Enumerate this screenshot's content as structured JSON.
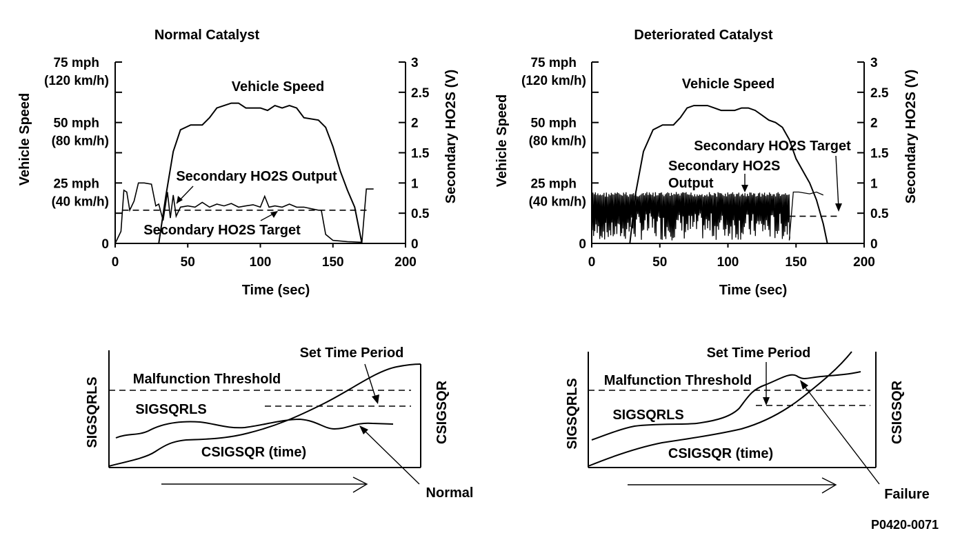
{
  "figure_code": "P0420-0071",
  "chart_data": [
    {
      "type": "line",
      "title": "Normal Catalyst",
      "xlabel": "Time (sec)",
      "ylabel_left": "Vehicle Speed",
      "ylabel_right": "Secondary HO2S (V)",
      "xlim": [
        0,
        200
      ],
      "ylim_left_mph": [
        0,
        75
      ],
      "ylim_right_v": [
        0,
        3
      ],
      "x_ticks": [
        "0",
        "50",
        "100",
        "150",
        "200"
      ],
      "y_ticks_left": [
        {
          "mph": 75,
          "line1": "75 mph",
          "line2": "(120 km/h)"
        },
        {
          "mph": 50,
          "line1": "50 mph",
          "line2": "(80 km/h)"
        },
        {
          "mph": 25,
          "line1": "25 mph",
          "line2": "(40 km/h)"
        },
        {
          "mph": 0,
          "line1": "0",
          "line2": ""
        }
      ],
      "y_ticks_right": [
        "0",
        "0.5",
        "1",
        "1.5",
        "2",
        "2.5",
        "3"
      ],
      "annotations": {
        "speed": "Vehicle Speed",
        "output": "Secondary HO2S Output",
        "target": "Secondary HO2S Target"
      },
      "series": [
        {
          "name": "Vehicle Speed",
          "unit": "mph",
          "x": [
            0,
            30,
            35,
            40,
            45,
            52,
            60,
            65,
            70,
            75,
            80,
            85,
            90,
            95,
            100,
            105,
            110,
            115,
            120,
            125,
            130,
            140,
            145,
            150,
            155,
            160,
            165,
            170
          ],
          "y": [
            0,
            0,
            20,
            38,
            47,
            49,
            49,
            52,
            56,
            57,
            58,
            58,
            56,
            56,
            56,
            55,
            57,
            56,
            57,
            56,
            52,
            51,
            48,
            40,
            30,
            22,
            15,
            0
          ]
        },
        {
          "name": "Secondary HO2S Output",
          "unit": "V",
          "x": [
            0,
            4,
            6,
            8,
            10,
            13,
            16,
            20,
            25,
            28,
            30,
            33,
            36,
            38,
            40,
            42,
            45,
            50,
            55,
            60,
            65,
            70,
            75,
            80,
            85,
            90,
            95,
            100,
            103,
            106,
            110,
            115,
            120,
            125,
            130,
            140,
            142,
            145,
            150,
            160,
            168,
            170,
            173,
            178
          ],
          "y": [
            0,
            0.2,
            0.88,
            0.85,
            0.55,
            0.7,
            1.0,
            1.0,
            0.98,
            0.62,
            0.65,
            0.38,
            0.85,
            0.42,
            0.8,
            0.45,
            0.6,
            0.62,
            0.6,
            0.68,
            0.6,
            0.65,
            0.62,
            0.66,
            0.6,
            0.62,
            0.64,
            0.6,
            0.78,
            0.6,
            0.62,
            0.6,
            0.65,
            0.6,
            0.6,
            0.55,
            0.55,
            0.15,
            0.05,
            0.03,
            0.02,
            0.02,
            0.9,
            0.9
          ]
        },
        {
          "name": "Secondary HO2S Target",
          "unit": "V",
          "x": [
            5,
            175
          ],
          "y": [
            0.55,
            0.55
          ]
        }
      ]
    },
    {
      "type": "line",
      "title": "Deteriorated Catalyst",
      "xlabel": "Time (sec)",
      "ylabel_left": "Vehicle Speed",
      "ylabel_right": "Secondary HO2S (V)",
      "xlim": [
        0,
        200
      ],
      "ylim_left_mph": [
        0,
        75
      ],
      "ylim_right_v": [
        0,
        3
      ],
      "x_ticks": [
        "0",
        "50",
        "100",
        "150",
        "200"
      ],
      "y_ticks_left": [
        {
          "mph": 75,
          "line1": "75 mph",
          "line2": "(120 km/h)"
        },
        {
          "mph": 50,
          "line1": "50 mph",
          "line2": "(80 km/h)"
        },
        {
          "mph": 25,
          "line1": "25 mph",
          "line2": "(40 km/h)"
        },
        {
          "mph": 0,
          "line1": "0",
          "line2": ""
        }
      ],
      "y_ticks_right": [
        "0",
        "0.5",
        "1",
        "1.5",
        "2",
        "2.5",
        "3"
      ],
      "annotations": {
        "speed": "Vehicle Speed",
        "output_line1": "Secondary HO2S",
        "output_line2": "Output",
        "target": "Secondary HO2S Target"
      },
      "series": [
        {
          "name": "Vehicle Speed",
          "unit": "mph",
          "x": [
            0,
            28,
            32,
            38,
            45,
            52,
            60,
            65,
            70,
            75,
            80,
            85,
            90,
            95,
            100,
            105,
            110,
            115,
            120,
            125,
            130,
            135,
            140,
            145,
            150,
            155,
            160,
            165,
            170,
            173
          ],
          "y": [
            0,
            0,
            20,
            38,
            47,
            49,
            49,
            52,
            56,
            57,
            57,
            57,
            56,
            55,
            55,
            55,
            56,
            56,
            55,
            53,
            51,
            50,
            48,
            43,
            35,
            30,
            25,
            18,
            8,
            0
          ]
        },
        {
          "name": "Secondary HO2S Output",
          "unit": "V",
          "x_range": [
            0,
            145
          ],
          "oscillation_v": [
            0.05,
            0.85
          ],
          "x_tail": [
            145,
            148,
            152,
            160,
            165,
            170
          ],
          "y_tail": [
            0.05,
            0.85,
            0.85,
            0.82,
            0.85,
            0.8
          ]
        },
        {
          "name": "Secondary HO2S Target",
          "unit": "V",
          "x": [
            145,
            180
          ],
          "y": [
            0.45,
            0.45
          ]
        }
      ]
    },
    {
      "type": "line",
      "label_left": "SIGSQRLS",
      "label_right": "CSIGSQR",
      "annotations": {
        "threshold": "Malfunction Threshold",
        "period": "Set Time Period",
        "sig": "SIGSQRLS",
        "csig": "CSIGSQR (time)",
        "result": "Normal"
      }
    },
    {
      "type": "line",
      "label_left": "SIGSQRLS",
      "label_right": "CSIGSQR",
      "annotations": {
        "threshold": "Malfunction Threshold",
        "period": "Set Time Period",
        "sig": "SIGSQRLS",
        "csig": "CSIGSQR (time)",
        "result": "Failure"
      }
    }
  ]
}
